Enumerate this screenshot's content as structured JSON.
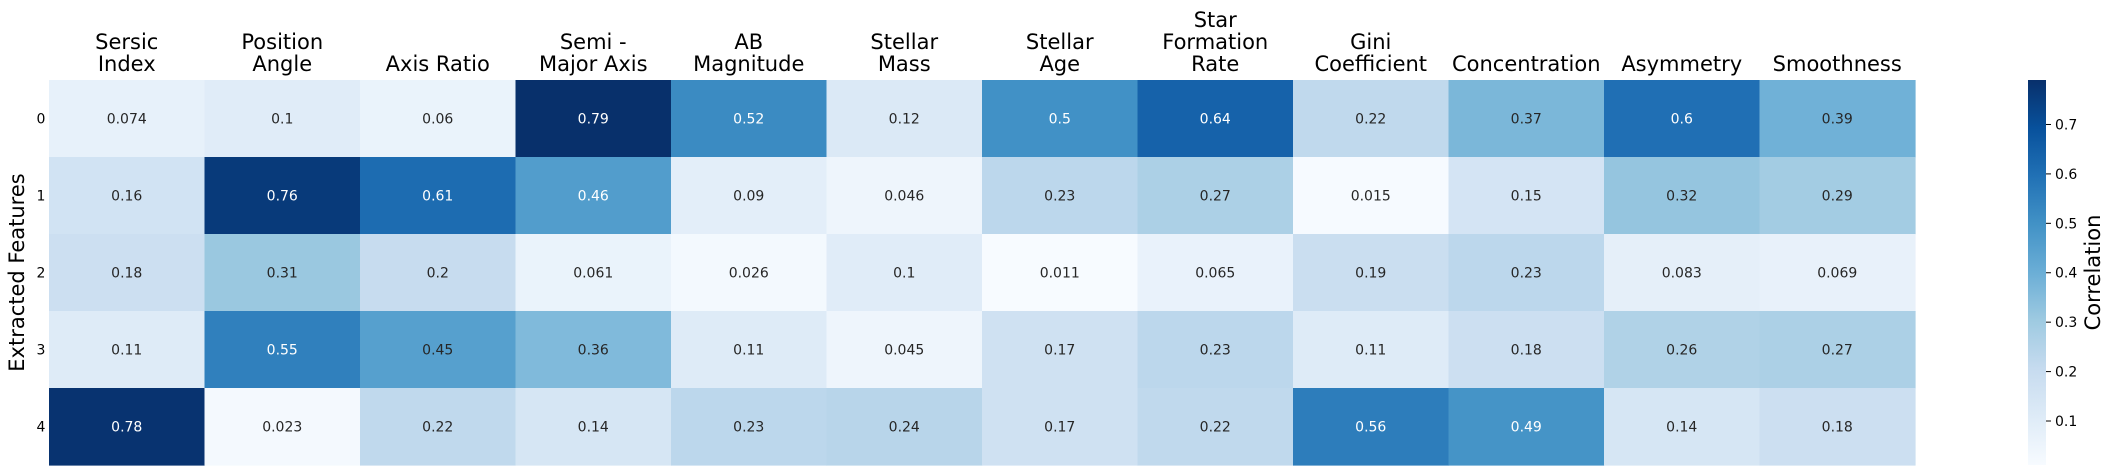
{
  "chart_data": {
    "type": "heatmap",
    "columns": [
      [
        "Sersic",
        "Index"
      ],
      [
        "Position",
        "Angle"
      ],
      [
        "Axis Ratio"
      ],
      [
        "Semi -",
        "Major Axis"
      ],
      [
        "AB",
        "Magnitude"
      ],
      [
        "Stellar",
        "Mass"
      ],
      [
        "Stellar",
        "Age"
      ],
      [
        "Star",
        "Formation",
        "Rate"
      ],
      [
        "Gini",
        "Coefficient"
      ],
      [
        "Concentration"
      ],
      [
        "Asymmetry"
      ],
      [
        "Smoothness"
      ]
    ],
    "rows": [
      "0",
      "1",
      "2",
      "3",
      "4"
    ],
    "values": [
      [
        0.074,
        0.1,
        0.06,
        0.79,
        0.52,
        0.12,
        0.5,
        0.64,
        0.22,
        0.37,
        0.6,
        0.39
      ],
      [
        0.16,
        0.76,
        0.61,
        0.46,
        0.09,
        0.046,
        0.23,
        0.27,
        0.015,
        0.15,
        0.32,
        0.29
      ],
      [
        0.18,
        0.31,
        0.2,
        0.061,
        0.026,
        0.1,
        0.011,
        0.065,
        0.19,
        0.23,
        0.083,
        0.069
      ],
      [
        0.11,
        0.55,
        0.45,
        0.36,
        0.11,
        0.045,
        0.17,
        0.23,
        0.11,
        0.18,
        0.26,
        0.27
      ],
      [
        0.78,
        0.023,
        0.22,
        0.14,
        0.23,
        0.24,
        0.17,
        0.22,
        0.56,
        0.49,
        0.14,
        0.18
      ]
    ],
    "ylabel": "Extracted Features",
    "colorbar_label": "Correlation",
    "colorbar_ticks": [
      "0.1",
      "0.2",
      "0.3",
      "0.4",
      "0.5",
      "0.6",
      "0.7"
    ],
    "value_range": [
      0.011,
      0.79
    ],
    "colormap": "Blues",
    "colormap_stops": [
      "#f7fbff",
      "#deebf7",
      "#c6dbef",
      "#9ecae1",
      "#6baed6",
      "#4292c6",
      "#2171b5",
      "#08519c",
      "#08306b"
    ],
    "grid": false
  }
}
